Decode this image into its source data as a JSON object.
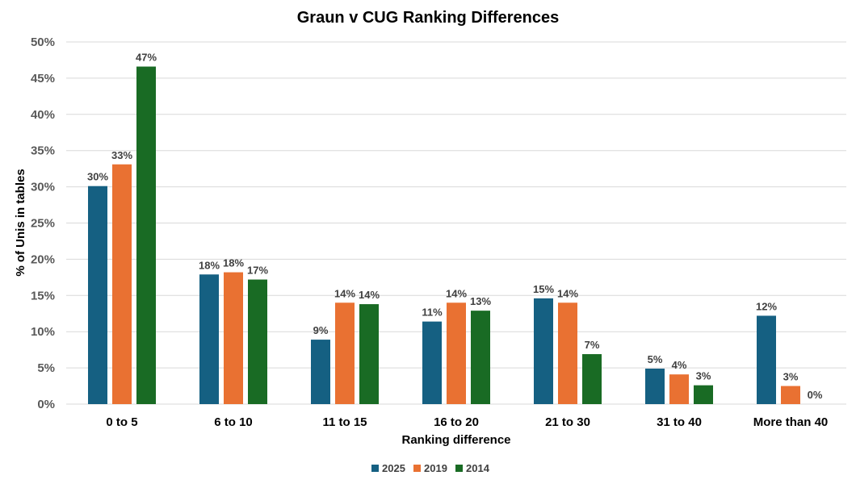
{
  "chart_data": {
    "type": "bar",
    "title": "Graun v CUG Ranking Differences",
    "xlabel": "Ranking difference",
    "ylabel": "% of Unis in tables",
    "categories": [
      "0 to 5",
      "6 to 10",
      "11 to 15",
      "16 to 20",
      "21 to 30",
      "31 to 40",
      "More than 40"
    ],
    "series": [
      {
        "name": "2025",
        "color": "#156082",
        "values": [
          30.1,
          17.9,
          8.9,
          11.4,
          14.6,
          4.9,
          12.2
        ],
        "labels": [
          "30%",
          "18%",
          "9%",
          "11%",
          "15%",
          "5%",
          "12%"
        ]
      },
      {
        "name": "2019",
        "color": "#E97132",
        "values": [
          33.1,
          18.2,
          14.0,
          14.0,
          14.0,
          4.1,
          2.5
        ],
        "labels": [
          "33%",
          "18%",
          "14%",
          "14%",
          "14%",
          "4%",
          "3%"
        ]
      },
      {
        "name": "2014",
        "color": "#196B24",
        "values": [
          46.6,
          17.2,
          13.8,
          12.9,
          6.9,
          2.6,
          0
        ],
        "labels": [
          "47%",
          "17%",
          "14%",
          "13%",
          "7%",
          "3%",
          "0%"
        ]
      }
    ],
    "ylim": [
      0,
      50
    ],
    "yticks": [
      0,
      5,
      10,
      15,
      20,
      25,
      30,
      35,
      40,
      45,
      50
    ],
    "ytick_labels": [
      "0%",
      "5%",
      "10%",
      "15%",
      "20%",
      "25%",
      "30%",
      "35%",
      "40%",
      "45%",
      "50%"
    ],
    "grid": true,
    "legend_position": "bottom"
  }
}
